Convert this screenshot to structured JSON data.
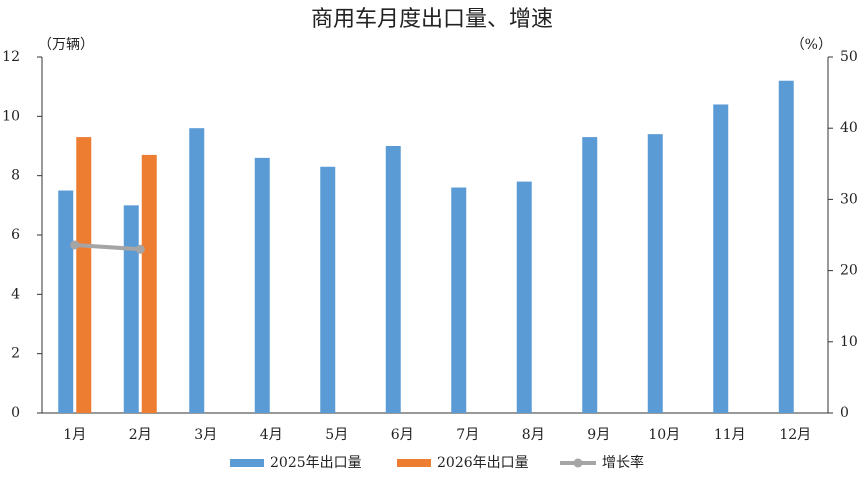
{
  "chart_data": {
    "type": "bar",
    "title": "商用车月度出口量、增速",
    "y_label": "（万辆）",
    "y2_label": "（%）",
    "categories": [
      "1月",
      "2月",
      "3月",
      "4月",
      "5月",
      "6月",
      "7月",
      "8月",
      "9月",
      "10月",
      "11月",
      "12月"
    ],
    "series": [
      {
        "name": "2025年出口量",
        "color": "#5b9bd5",
        "values": [
          7.5,
          7.0,
          9.6,
          8.6,
          8.3,
          9.0,
          7.6,
          7.8,
          9.3,
          9.4,
          10.4,
          11.2
        ]
      },
      {
        "name": "2026年出口量",
        "color": "#ed7d31",
        "values": [
          9.3,
          8.7,
          null,
          null,
          null,
          null,
          null,
          null,
          null,
          null,
          null,
          null
        ]
      },
      {
        "name": "增长率",
        "color": "#a5a5a5",
        "type": "line",
        "axis": "y2",
        "values": [
          23.6,
          23.0,
          null,
          null,
          null,
          null,
          null,
          null,
          null,
          null,
          null,
          null
        ]
      }
    ],
    "ylim": [
      0,
      12
    ],
    "yticks": [
      0,
      2,
      4,
      6,
      8,
      10,
      12
    ],
    "y2lim": [
      0,
      50
    ],
    "y2ticks": [
      0,
      10,
      20,
      30,
      40,
      50
    ],
    "grid": false,
    "legend": "bottom"
  }
}
